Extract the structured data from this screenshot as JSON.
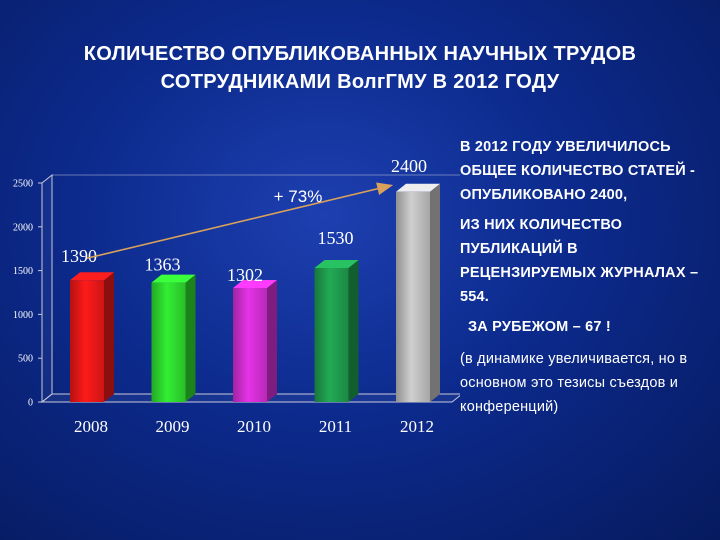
{
  "title": {
    "line1": "КОЛИЧЕСТВО ОПУБЛИКОВАННЫХ НАУЧНЫХ ТРУДОВ",
    "line2": "СОТРУДНИКАМИ ВолгГМУ В 2012 ГОДУ"
  },
  "side_text": {
    "p1": "В 2012 ГОДУ УВЕЛИЧИЛОСЬ ОБЩЕЕ КОЛИЧЕСТВО СТАТЕЙ - ОПУБЛИКОВАНО 2400,",
    "p2": "ИЗ НИХ КОЛИЧЕСТВО ПУБЛИКАЦИЙ В РЕЦЕНЗИРУЕМЫХ ЖУРНАЛАХ – 554.",
    "p3": "ЗА РУБЕЖОМ – 67 !",
    "p4": "(в динамике увеличивается, но в основном это тезисы съездов и конференций)"
  },
  "colors": {
    "background": "#0c2a8c",
    "arrow": "#d9a15a",
    "bars": [
      "#ff1a1a",
      "#33ee33",
      "#e633e6",
      "#22aa55",
      "#cfcfcf"
    ]
  },
  "chart_data": {
    "type": "bar",
    "categories": [
      "2008",
      "2009",
      "2010",
      "2011",
      "2012"
    ],
    "values": [
      1390,
      1363,
      1302,
      1530,
      2400
    ],
    "value_labels": [
      "1390",
      "1363",
      "1302",
      "1530",
      "2400"
    ],
    "y_ticks": [
      "0",
      "500",
      "1000",
      "1500",
      "2000",
      "2500"
    ],
    "ylim": [
      0,
      2500
    ],
    "annotation": "+ 73%",
    "grid": false,
    "legend": "none",
    "style": "3d"
  }
}
